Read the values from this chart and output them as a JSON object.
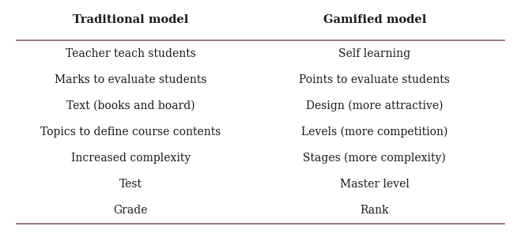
{
  "col1_header": "Traditional model",
  "col2_header": "Gamified model",
  "rows": [
    [
      "Teacher teach students",
      "Self learning"
    ],
    [
      "Marks to evaluate students",
      "Points to evaluate students"
    ],
    [
      "Text (books and board)",
      "Design (more attractive)"
    ],
    [
      "Topics to define course contents",
      "Levels (more competition)"
    ],
    [
      "Increased complexity",
      "Stages (more complexity)"
    ],
    [
      "Test",
      "Master level"
    ],
    [
      "Grade",
      "Rank"
    ]
  ],
  "bg_color": "#ffffff",
  "text_color": "#1a1a1a",
  "header_color": "#1a1a1a",
  "line_color": "#8B6060",
  "header_fontsize": 10.5,
  "body_fontsize": 10,
  "fig_width": 6.59,
  "fig_height": 2.96
}
